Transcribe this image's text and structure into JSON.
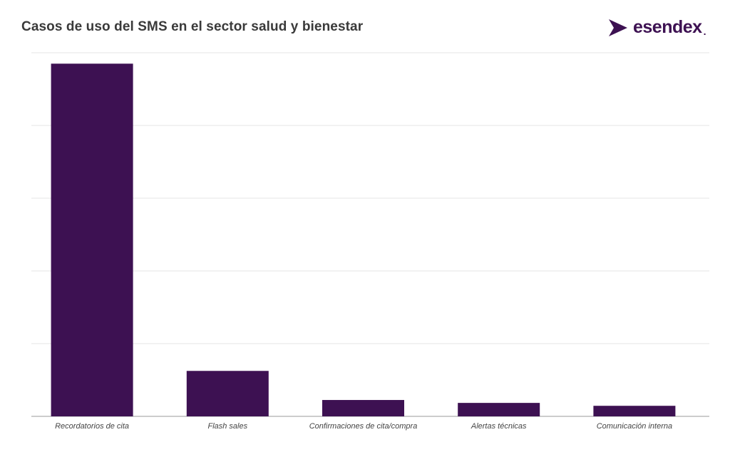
{
  "chart_data": {
    "type": "bar",
    "title": "Casos de uso del SMS en el sector salud y bienestar",
    "xlabel": "",
    "ylabel": "",
    "categories": [
      "Recordatorios de cita",
      "Flash sales",
      "Confirmaciones de cita/compra",
      "Alertas técnicas",
      "Comunicación interna"
    ],
    "values": [
      97,
      12.5,
      4.5,
      3.7,
      2.9
    ],
    "ylim": [
      0,
      100
    ],
    "grid": true,
    "bar_color": "#3d1152"
  },
  "brand": {
    "name": "esendex",
    "color": "#3d1152"
  }
}
